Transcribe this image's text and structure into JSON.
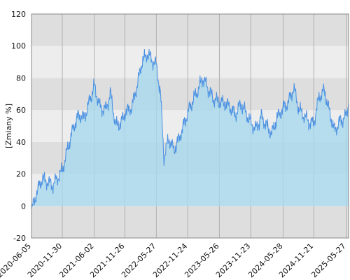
{
  "chart_data": {
    "type": "area",
    "title": "",
    "xlabel": "",
    "ylabel": "[Zmiany %]",
    "ylim": [
      -20,
      120
    ],
    "yticks": [
      "-20",
      "0",
      "20",
      "40",
      "60",
      "80",
      "100",
      "120"
    ],
    "xticks": [
      "2020-06-05",
      "2020-11-30",
      "2021-06-02",
      "2021-11-26",
      "2022-05-27",
      "2022-11-24",
      "2023-05-26",
      "2023-11-23",
      "2024-05-28",
      "2024-11-21",
      "2025-05-27"
    ],
    "grid": true,
    "legend": "none",
    "colors": {
      "line": "#4a90e2",
      "fill": "#a8d8ec",
      "band_light": "#ededed",
      "band_dark": "#dedede",
      "gridline": "#b0b0b0"
    },
    "series": [
      {
        "x": [
          "2020-06-05",
          "2020-07-05",
          "2020-08-05",
          "2020-09-05",
          "2020-10-05",
          "2020-11-05",
          "2020-11-30",
          "2021-01-05",
          "2021-02-05",
          "2021-03-05",
          "2021-04-05",
          "2021-05-05",
          "2021-06-02",
          "2021-07-05",
          "2021-08-05",
          "2021-09-05",
          "2021-10-05",
          "2021-11-05",
          "2021-11-26",
          "2022-01-05",
          "2022-02-05",
          "2022-03-05",
          "2022-04-05",
          "2022-05-27",
          "2022-06-20",
          "2022-07-10",
          "2022-08-05",
          "2022-09-05",
          "2022-10-05",
          "2022-11-24",
          "2022-12-20",
          "2023-01-20",
          "2023-02-20",
          "2023-03-20",
          "2023-04-20",
          "2023-05-26",
          "2023-06-26",
          "2023-07-26",
          "2023-08-26",
          "2023-09-26",
          "2023-10-26",
          "2023-11-23",
          "2023-12-23",
          "2024-01-23",
          "2024-02-23",
          "2024-03-23",
          "2024-04-23",
          "2024-05-28",
          "2024-06-28",
          "2024-07-28",
          "2024-08-28",
          "2024-09-28",
          "2024-10-28",
          "2024-11-21",
          "2024-12-21",
          "2025-01-21",
          "2025-02-21",
          "2025-03-21",
          "2025-04-21",
          "2025-05-27",
          "2025-06-10"
        ],
        "values": [
          -3,
          8,
          17,
          15,
          13,
          18,
          22,
          38,
          50,
          57,
          55,
          65,
          75,
          62,
          60,
          70,
          50,
          52,
          58,
          62,
          75,
          90,
          95,
          88,
          70,
          30,
          42,
          35,
          42,
          58,
          65,
          72,
          80,
          74,
          67,
          65,
          64,
          62,
          57,
          64,
          58,
          52,
          48,
          56,
          50,
          45,
          55,
          61,
          65,
          74,
          60,
          56,
          52,
          52,
          68,
          72,
          58,
          47,
          53,
          56,
          65
        ]
      }
    ]
  }
}
